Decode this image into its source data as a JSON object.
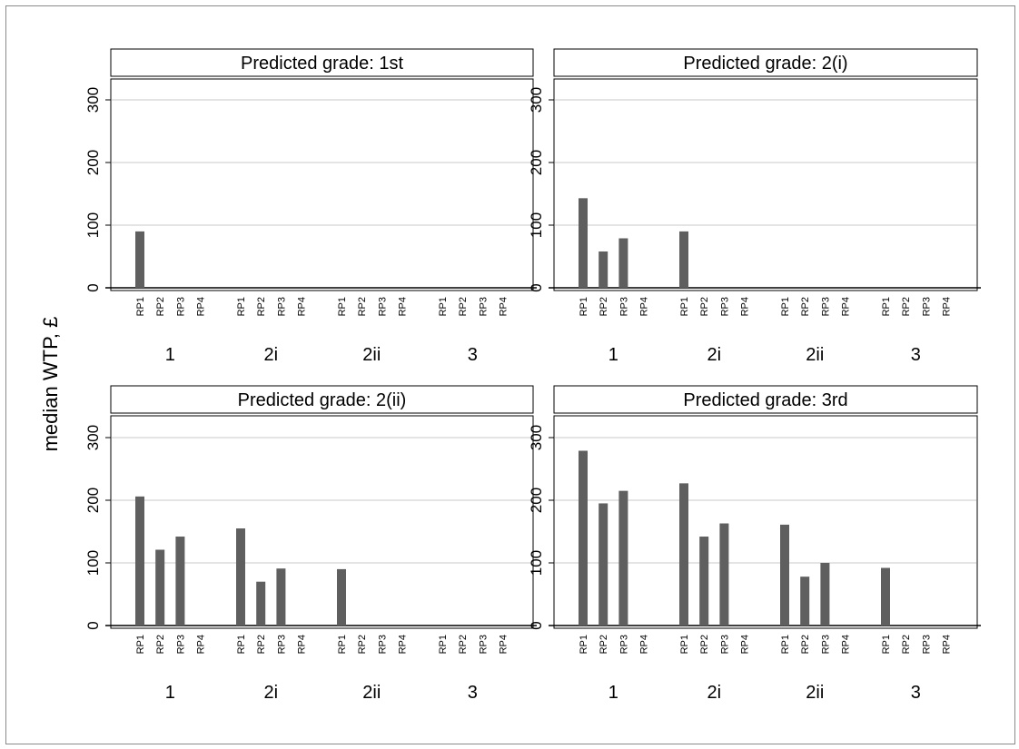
{
  "ylabel": "median WTP,  £",
  "bar_color": "#5f5f5f",
  "grid_color": "#dcdcdc",
  "chart_data": {
    "type": "bar",
    "ylim": [
      0,
      340
    ],
    "yticks": [
      0,
      100,
      200,
      300
    ],
    "groups": [
      "1",
      "2i",
      "2ii",
      "3"
    ],
    "categories": [
      "RP1",
      "RP2",
      "RP3",
      "RP4"
    ],
    "panels": [
      {
        "title": "Predicted grade: 1st",
        "values": {
          "1": [
            90,
            0,
            0,
            0
          ],
          "2i": [
            0,
            0,
            0,
            0
          ],
          "2ii": [
            0,
            0,
            0,
            0
          ],
          "3": [
            0,
            0,
            0,
            0
          ]
        }
      },
      {
        "title": "Predicted grade: 2(i)",
        "values": {
          "1": [
            143,
            58,
            79,
            0
          ],
          "2i": [
            90,
            0,
            0,
            0
          ],
          "2ii": [
            0,
            0,
            0,
            0
          ],
          "3": [
            0,
            0,
            0,
            0
          ]
        }
      },
      {
        "title": "Predicted grade: 2(ii)",
        "values": {
          "1": [
            206,
            121,
            142,
            0
          ],
          "2i": [
            155,
            70,
            91,
            0
          ],
          "2ii": [
            90,
            0,
            0,
            0
          ],
          "3": [
            0,
            0,
            0,
            0
          ]
        }
      },
      {
        "title": "Predicted grade: 3rd",
        "values": {
          "1": [
            279,
            195,
            215,
            0
          ],
          "2i": [
            227,
            142,
            163,
            0
          ],
          "2ii": [
            161,
            78,
            100,
            0
          ],
          "3": [
            92,
            0,
            0,
            0
          ]
        }
      }
    ]
  }
}
